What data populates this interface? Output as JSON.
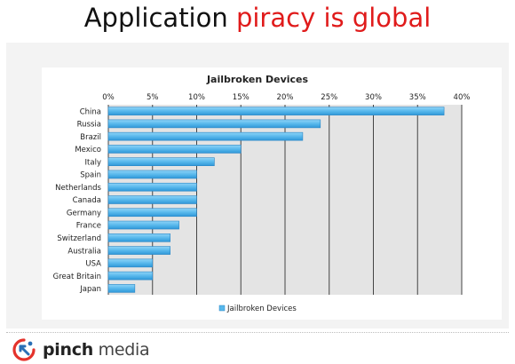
{
  "slide": {
    "title_part1": "Application",
    "title_part2": "piracy is global",
    "title_accent_color": "#e01b1b"
  },
  "brand": {
    "name_bold": "pinch",
    "name_regular": " media",
    "logo_icon": "pinch-media-logo-icon",
    "logo_colors": [
      "#e4322b",
      "#2a6fb5"
    ]
  },
  "chart_data": {
    "type": "bar",
    "orientation": "horizontal",
    "title": "Jailbroken Devices",
    "categories": [
      "China",
      "Russia",
      "Brazil",
      "Mexico",
      "Italy",
      "Spain",
      "Netherlands",
      "Canada",
      "Germany",
      "France",
      "Switzerland",
      "Australia",
      "USA",
      "Great Britain",
      "Japan"
    ],
    "series": [
      {
        "name": "Jailbroken Devices",
        "values": [
          38,
          24,
          22,
          15,
          12,
          10,
          10,
          10,
          10,
          8,
          7,
          7,
          5,
          5,
          3
        ],
        "color": "#58b8ec"
      }
    ],
    "value_axis": {
      "position": "top",
      "ticks": [
        0,
        5,
        10,
        15,
        20,
        25,
        30,
        35,
        40
      ],
      "tick_labels": [
        "0%",
        "5%",
        "10%",
        "15%",
        "20%",
        "25%",
        "30%",
        "35%",
        "40%"
      ],
      "range": [
        0,
        40
      ]
    },
    "grid": true,
    "plot_background": "#e4e4e4",
    "legend": {
      "position": "bottom",
      "entries": [
        "Jailbroken Devices"
      ]
    }
  }
}
